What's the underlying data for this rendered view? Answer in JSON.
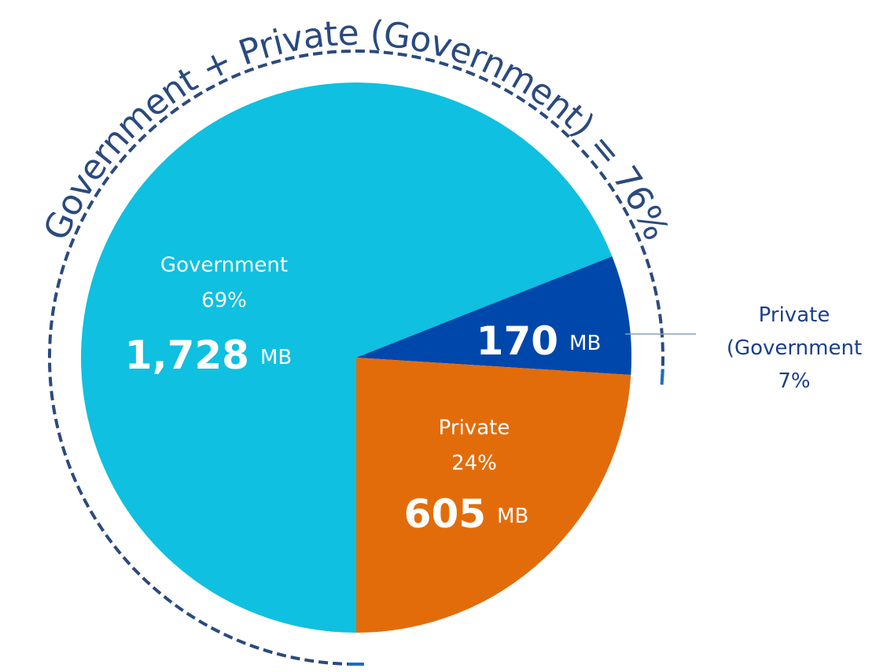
{
  "chart_data": {
    "type": "pie",
    "annotation": "Government + Private (Government) = 76%",
    "categories": [
      "Government",
      "Private (Government",
      "Private"
    ],
    "values": [
      69,
      7,
      24
    ],
    "value_labels": [
      "69%",
      "7%",
      "24%"
    ],
    "sizes": [
      1728,
      170,
      605
    ],
    "size_labels": [
      "1,728",
      "170",
      "605"
    ],
    "size_unit": "MB",
    "colors": [
      "#0fc0e0",
      "#0047ab",
      "#e36c0a"
    ],
    "start_angle": 180,
    "direction": "clockwise"
  }
}
